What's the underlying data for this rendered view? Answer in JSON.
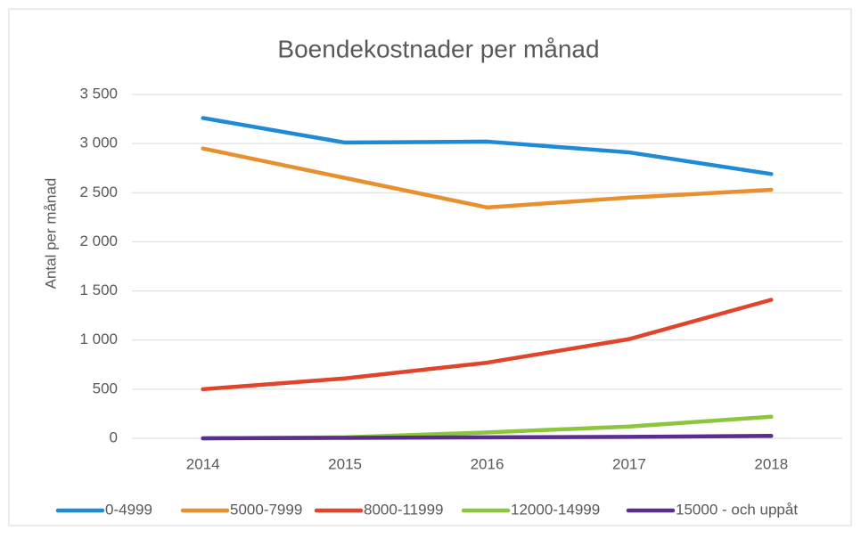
{
  "chart_data": {
    "type": "line",
    "title": "Boendekostnader per månad",
    "y_label": "Antal per månad",
    "categories": [
      "2014",
      "2015",
      "2016",
      "2017",
      "2018"
    ],
    "series": [
      {
        "name": "0-4999",
        "color": "#1f8ad6",
        "values": [
          3260,
          3010,
          3020,
          2910,
          2690
        ]
      },
      {
        "name": "5000-7999",
        "color": "#e8902f",
        "values": [
          2950,
          2650,
          2350,
          2450,
          2530
        ]
      },
      {
        "name": "8000-11999",
        "color": "#e0442a",
        "values": [
          500,
          610,
          770,
          1010,
          1410
        ]
      },
      {
        "name": "12000-14999",
        "color": "#8cc63e",
        "values": [
          0,
          10,
          60,
          120,
          220
        ]
      },
      {
        "name": "15000 - och uppåt",
        "color": "#5b2d8e",
        "values": [
          0,
          5,
          10,
          15,
          25
        ]
      }
    ],
    "ylim": [
      0,
      3500
    ],
    "yticks": [
      0,
      500,
      {
        "value": 1000,
        "label": "1 000"
      },
      {
        "value": 1500,
        "label": "1 500"
      },
      {
        "value": 2000,
        "label": "2 000"
      },
      {
        "value": 2500,
        "label": "2 500"
      },
      {
        "value": 3000,
        "label": "3 000"
      },
      {
        "value": 3500,
        "label": "3 500"
      }
    ],
    "grid": true,
    "legend": "bottom"
  }
}
